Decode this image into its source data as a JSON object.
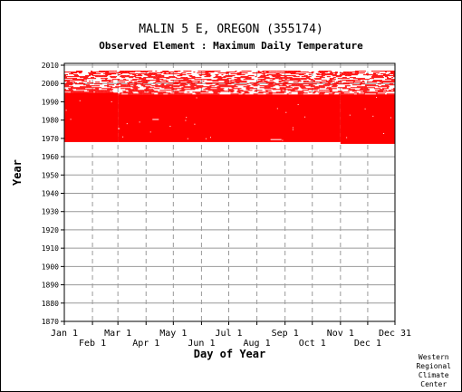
{
  "chart_data": {
    "type": "scatter",
    "title": "MALIN 5 E, OREGON   (355174)",
    "subtitle": "Observed Element : Maximum Daily Temperature",
    "xlabel": "Day of Year",
    "ylabel": "Year",
    "xlim": [
      1,
      365
    ],
    "ylim": [
      1870,
      2011
    ],
    "yticks": [
      1870,
      1880,
      1890,
      1900,
      1910,
      1920,
      1930,
      1940,
      1950,
      1960,
      1970,
      1980,
      1990,
      2000,
      2010
    ],
    "month_ticks_top_row": [
      {
        "label": "Jan 1",
        "day": 1
      },
      {
        "label": "Mar 1",
        "day": 60
      },
      {
        "label": "May 1",
        "day": 121
      },
      {
        "label": "Jul 1",
        "day": 182
      },
      {
        "label": "Sep 1",
        "day": 244
      },
      {
        "label": "Nov 1",
        "day": 305
      },
      {
        "label": "Dec 31",
        "day": 365
      }
    ],
    "month_ticks_bottom_row": [
      {
        "label": "Feb 1",
        "day": 32
      },
      {
        "label": "Apr 1",
        "day": 91
      },
      {
        "label": "Jun 1",
        "day": 152
      },
      {
        "label": "Aug 1",
        "day": 213
      },
      {
        "label": "Oct 1",
        "day": 274
      },
      {
        "label": "Dec 1",
        "day": 335
      }
    ],
    "data_color": "#ff0000",
    "solid_coverage": [
      {
        "start_day": 1,
        "end_day": 60,
        "start_year": 1968,
        "end_year": 1995
      },
      {
        "start_day": 60,
        "end_day": 305,
        "start_year": 1968,
        "end_year": 1994
      },
      {
        "start_day": 305,
        "end_day": 365,
        "start_year": 1967,
        "end_year": 1994
      }
    ],
    "sparse_coverage": {
      "start_day": 1,
      "end_day": 365,
      "start_year": 1994,
      "end_year": 2007,
      "density": 0.55
    },
    "gaps": [
      {
        "start_day": 98,
        "end_day": 105,
        "year": 1980
      },
      {
        "start_day": 228,
        "end_day": 240,
        "year": 1969
      },
      {
        "start_day": 60,
        "end_day": 62,
        "year": 1975
      }
    ],
    "grid": true
  },
  "credit": [
    "Western",
    "Regional",
    "Climate",
    "Center"
  ]
}
